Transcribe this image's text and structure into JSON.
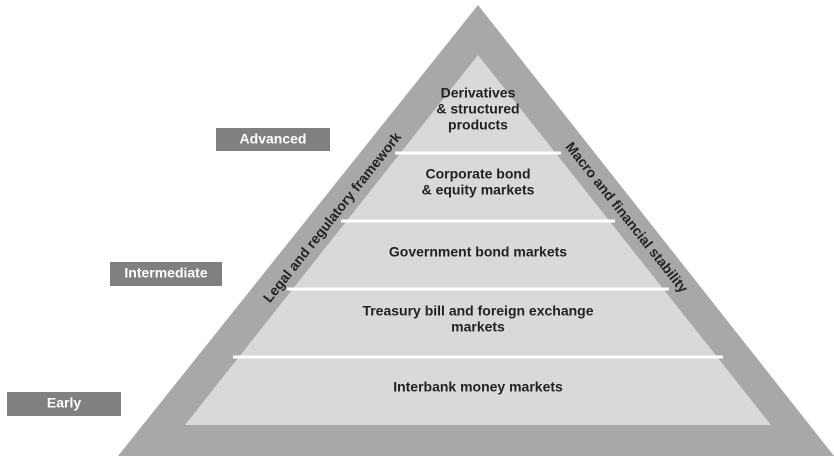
{
  "levels": [
    "Advanced",
    "Intermediate",
    "Early"
  ],
  "sides": {
    "left": "Legal and regulatory framework",
    "right": "Macro and financial stability"
  },
  "tiers": [
    {
      "lines": [
        "Derivatives",
        "& structured",
        "products"
      ]
    },
    {
      "lines": [
        "Corporate bond",
        "& equity markets"
      ]
    },
    {
      "lines": [
        "Government bond markets"
      ]
    },
    {
      "lines": [
        "Treasury bill and foreign exchange",
        "markets"
      ]
    },
    {
      "lines": [
        "Interbank money markets"
      ]
    }
  ]
}
